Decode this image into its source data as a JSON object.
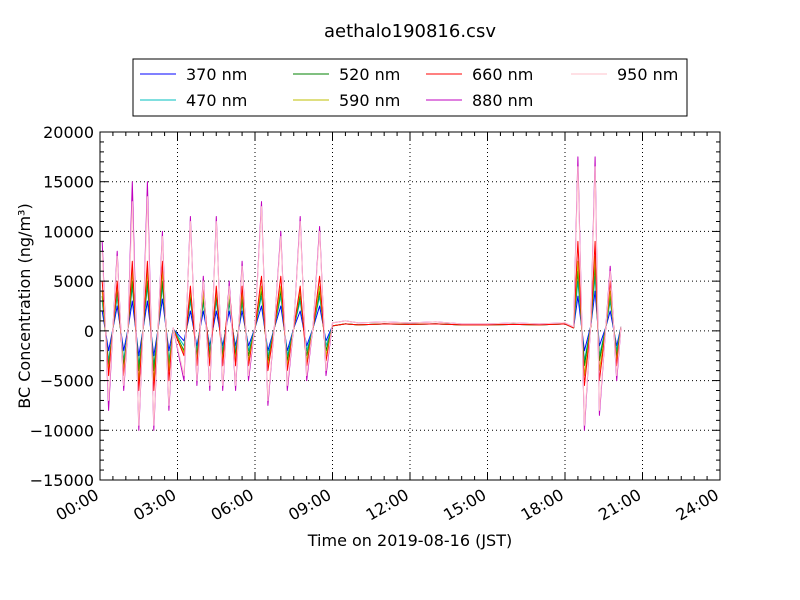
{
  "chart_data": {
    "type": "line",
    "title": "aethalo190816.csv",
    "xlabel": "Time on 2019-08-16 (JST)",
    "ylabel": "BC Concentration (ng/m³)",
    "xlim": [
      "00:00",
      "24:00"
    ],
    "ylim": [
      -15000,
      20000
    ],
    "x_ticks": [
      "00:00",
      "03:00",
      "06:00",
      "09:00",
      "12:00",
      "15:00",
      "18:00",
      "21:00",
      "24:00"
    ],
    "y_ticks": [
      "20000",
      "15000",
      "10000",
      "5000",
      "0",
      "−5000",
      "−10000",
      "−15000"
    ],
    "grid": true,
    "legend_position": "top-center",
    "legend": [
      {
        "label": "370 nm",
        "color": "#0000ff"
      },
      {
        "label": "470 nm",
        "color": "#00bfbf"
      },
      {
        "label": "520 nm",
        "color": "#008000"
      },
      {
        "label": "590 nm",
        "color": "#bfbf00"
      },
      {
        "label": "660 nm",
        "color": "#ff0000"
      },
      {
        "label": "880 nm",
        "color": "#bf00bf"
      },
      {
        "label": "950 nm",
        "color": "#ffc0cb"
      }
    ],
    "series": [
      {
        "name": "370 nm",
        "color": "#0000ff",
        "x": [
          "00:05",
          "00:20",
          "00:30",
          "00:40",
          "00:55",
          "01:05",
          "01:15",
          "01:30",
          "01:40",
          "01:50",
          "02:05",
          "02:15",
          "02:25",
          "02:40",
          "02:50",
          "03:15",
          "03:30",
          "03:45",
          "04:00",
          "04:15",
          "04:30",
          "04:45",
          "05:00",
          "05:15",
          "05:30",
          "05:45",
          "06:00",
          "06:15",
          "06:30",
          "06:45",
          "07:00",
          "07:15",
          "07:30",
          "07:45",
          "08:00",
          "08:15",
          "08:30",
          "08:45",
          "09:00",
          "09:30",
          "10:00",
          "11:00",
          "12:00",
          "13:00",
          "14:00",
          "15:00",
          "16:00",
          "17:00",
          "18:00",
          "18:20",
          "18:30",
          "18:45",
          "19:00",
          "19:10",
          "19:20",
          "19:35",
          "19:45",
          "20:00",
          "20:10"
        ],
        "y": [
          2000,
          -2000,
          200,
          2500,
          -2000,
          200,
          3000,
          -2500,
          200,
          3000,
          -2500,
          200,
          3200,
          -2000,
          200,
          -1000,
          2000,
          -1500,
          2000,
          -1500,
          2000,
          -1500,
          2000,
          -1500,
          2000,
          -1500,
          300,
          2500,
          -2000,
          300,
          2500,
          -2000,
          300,
          2000,
          -1500,
          300,
          2500,
          -1000,
          500,
          700,
          600,
          700,
          650,
          700,
          600,
          600,
          650,
          600,
          700,
          300,
          3500,
          -2000,
          500,
          4000,
          -1500,
          400,
          2000,
          -1500,
          400
        ]
      },
      {
        "name": "470 nm",
        "color": "#00bfbf",
        "x": [
          "00:05",
          "00:20",
          "00:30",
          "00:40",
          "00:55",
          "01:05",
          "01:15",
          "01:30",
          "01:40",
          "01:50",
          "02:05",
          "02:15",
          "02:25",
          "02:40",
          "02:50",
          "03:15",
          "03:30",
          "03:45",
          "04:00",
          "04:15",
          "04:30",
          "04:45",
          "05:00",
          "05:15",
          "05:30",
          "05:45",
          "06:00",
          "06:15",
          "06:30",
          "06:45",
          "07:00",
          "07:15",
          "07:30",
          "07:45",
          "08:00",
          "08:15",
          "08:30",
          "08:45",
          "09:00",
          "09:30",
          "10:00",
          "11:00",
          "12:00",
          "13:00",
          "14:00",
          "15:00",
          "16:00",
          "17:00",
          "18:00",
          "18:20",
          "18:30",
          "18:45",
          "19:00",
          "19:10",
          "19:20",
          "19:35",
          "19:45",
          "20:00",
          "20:10"
        ],
        "y": [
          3000,
          -3000,
          200,
          3500,
          -3000,
          200,
          4500,
          -3500,
          200,
          4500,
          -3500,
          200,
          4500,
          -3000,
          200,
          -1500,
          3000,
          -2000,
          2800,
          -2000,
          3000,
          -2000,
          2800,
          -2000,
          2800,
          -2000,
          300,
          3500,
          -2500,
          300,
          3500,
          -2500,
          300,
          3000,
          -2000,
          300,
          3500,
          -1500,
          500,
          700,
          600,
          700,
          650,
          700,
          600,
          600,
          650,
          600,
          700,
          300,
          5000,
          -3000,
          500,
          5500,
          -2500,
          400,
          3000,
          -2000,
          400
        ]
      },
      {
        "name": "520 nm",
        "color": "#008000",
        "x": [
          "00:05",
          "00:20",
          "00:30",
          "00:40",
          "00:55",
          "01:05",
          "01:15",
          "01:30",
          "01:40",
          "01:50",
          "02:05",
          "02:15",
          "02:25",
          "02:40",
          "02:50",
          "03:15",
          "03:30",
          "03:45",
          "04:00",
          "04:15",
          "04:30",
          "04:45",
          "05:00",
          "05:15",
          "05:30",
          "05:45",
          "06:00",
          "06:15",
          "06:30",
          "06:45",
          "07:00",
          "07:15",
          "07:30",
          "07:45",
          "08:00",
          "08:15",
          "08:30",
          "08:45",
          "09:00",
          "09:30",
          "10:00",
          "11:00",
          "12:00",
          "13:00",
          "14:00",
          "15:00",
          "16:00",
          "17:00",
          "18:00",
          "18:20",
          "18:30",
          "18:45",
          "19:00",
          "19:10",
          "19:20",
          "19:35",
          "19:45",
          "20:00",
          "20:10"
        ],
        "y": [
          3500,
          -3500,
          200,
          4000,
          -3500,
          200,
          5000,
          -4000,
          200,
          5000,
          -4000,
          200,
          5000,
          -3500,
          200,
          -2000,
          3500,
          -2500,
          3200,
          -2500,
          3500,
          -2500,
          3200,
          -2500,
          3200,
          -2500,
          300,
          4000,
          -3000,
          300,
          4000,
          -3000,
          300,
          3500,
          -2500,
          300,
          4000,
          -2000,
          500,
          700,
          600,
          700,
          650,
          700,
          600,
          600,
          650,
          600,
          700,
          300,
          6000,
          -3500,
          500,
          6500,
          -3000,
          400,
          3500,
          -2500,
          400
        ]
      },
      {
        "name": "590 nm",
        "color": "#bfbf00",
        "x": [
          "00:05",
          "00:20",
          "00:30",
          "00:40",
          "00:55",
          "01:05",
          "01:15",
          "01:30",
          "01:40",
          "01:50",
          "02:05",
          "02:15",
          "02:25",
          "02:40",
          "02:50",
          "03:15",
          "03:30",
          "03:45",
          "04:00",
          "04:15",
          "04:30",
          "04:45",
          "05:00",
          "05:15",
          "05:30",
          "05:45",
          "06:00",
          "06:15",
          "06:30",
          "06:45",
          "07:00",
          "07:15",
          "07:30",
          "07:45",
          "08:00",
          "08:15",
          "08:30",
          "08:45",
          "09:00",
          "09:30",
          "10:00",
          "11:00",
          "12:00",
          "13:00",
          "14:00",
          "15:00",
          "16:00",
          "17:00",
          "18:00",
          "18:20",
          "18:30",
          "18:45",
          "19:00",
          "19:10",
          "19:20",
          "19:35",
          "19:45",
          "20:00",
          "20:10"
        ],
        "y": [
          4000,
          -4000,
          200,
          4500,
          -4000,
          200,
          6000,
          -5000,
          200,
          6000,
          -5000,
          200,
          6000,
          -4000,
          200,
          -2200,
          4000,
          -3000,
          3800,
          -3000,
          4000,
          -3000,
          3800,
          -3000,
          3800,
          -3000,
          300,
          4500,
          -3500,
          300,
          4500,
          -3500,
          300,
          4000,
          -3000,
          300,
          4500,
          -2500,
          500,
          700,
          600,
          700,
          650,
          700,
          600,
          600,
          650,
          600,
          700,
          300,
          7000,
          -4500,
          500,
          7500,
          -4000,
          400,
          4000,
          -3000,
          400
        ]
      },
      {
        "name": "660 nm",
        "color": "#ff0000",
        "x": [
          "00:05",
          "00:20",
          "00:30",
          "00:40",
          "00:55",
          "01:05",
          "01:15",
          "01:30",
          "01:40",
          "01:50",
          "02:05",
          "02:15",
          "02:25",
          "02:40",
          "02:50",
          "03:15",
          "03:30",
          "03:45",
          "04:00",
          "04:15",
          "04:30",
          "04:45",
          "05:00",
          "05:15",
          "05:30",
          "05:45",
          "06:00",
          "06:15",
          "06:30",
          "06:45",
          "07:00",
          "07:15",
          "07:30",
          "07:45",
          "08:00",
          "08:15",
          "08:30",
          "08:45",
          "09:00",
          "09:30",
          "10:00",
          "11:00",
          "12:00",
          "13:00",
          "14:00",
          "15:00",
          "16:00",
          "17:00",
          "18:00",
          "18:20",
          "18:30",
          "18:45",
          "19:00",
          "19:10",
          "19:20",
          "19:35",
          "19:45",
          "20:00",
          "20:10"
        ],
        "y": [
          5000,
          -4500,
          200,
          5000,
          -4500,
          200,
          7000,
          -6000,
          200,
          7000,
          -6000,
          200,
          7000,
          -5000,
          200,
          -2500,
          4500,
          -3500,
          4500,
          -3500,
          4500,
          -3500,
          4500,
          -3500,
          4500,
          -3500,
          300,
          5500,
          -4000,
          300,
          5500,
          -4000,
          300,
          4500,
          -3500,
          300,
          5500,
          -3000,
          500,
          700,
          600,
          700,
          650,
          700,
          600,
          600,
          650,
          600,
          700,
          300,
          9000,
          -5500,
          500,
          9000,
          -5000,
          400,
          5000,
          -3500,
          400
        ]
      },
      {
        "name": "880 nm",
        "color": "#bf00bf",
        "x": [
          "00:05",
          "00:20",
          "00:30",
          "00:40",
          "00:55",
          "01:05",
          "01:15",
          "01:30",
          "01:40",
          "01:50",
          "02:05",
          "02:15",
          "02:25",
          "02:40",
          "02:50",
          "03:15",
          "03:30",
          "03:45",
          "04:00",
          "04:15",
          "04:30",
          "04:45",
          "05:00",
          "05:15",
          "05:30",
          "05:45",
          "06:00",
          "06:15",
          "06:30",
          "06:45",
          "07:00",
          "07:15",
          "07:30",
          "07:45",
          "08:00",
          "08:15",
          "08:30",
          "08:45",
          "09:00",
          "09:30",
          "10:00",
          "11:00",
          "12:00",
          "13:00",
          "14:00",
          "15:00",
          "16:00",
          "17:00",
          "18:00",
          "18:20",
          "18:30",
          "18:45",
          "19:00",
          "19:10",
          "19:20",
          "19:35",
          "19:45",
          "20:00",
          "20:10"
        ],
        "y": [
          9000,
          -8000,
          300,
          8000,
          -6000,
          300,
          15000,
          -10000,
          300,
          15000,
          -10000,
          300,
          10000,
          -8000,
          300,
          -5000,
          11500,
          -5500,
          5500,
          -6000,
          11500,
          -6000,
          5000,
          -6000,
          7000,
          -5000,
          500,
          13000,
          -7500,
          500,
          10000,
          -6000,
          500,
          11500,
          -5000,
          500,
          10500,
          -4500,
          800,
          1000,
          800,
          900,
          800,
          900,
          700,
          700,
          800,
          700,
          800,
          400,
          17500,
          -10000,
          800,
          17500,
          -8500,
          500,
          6500,
          -5000,
          400
        ]
      },
      {
        "name": "950 nm",
        "color": "#ffc0cb",
        "x": [
          "00:05",
          "00:20",
          "00:30",
          "00:40",
          "00:55",
          "01:05",
          "01:15",
          "01:30",
          "01:40",
          "01:50",
          "02:05",
          "02:15",
          "02:25",
          "02:40",
          "02:50",
          "03:15",
          "03:30",
          "03:45",
          "04:00",
          "04:15",
          "04:30",
          "04:45",
          "05:00",
          "05:15",
          "05:30",
          "05:45",
          "06:00",
          "06:15",
          "06:30",
          "06:45",
          "07:00",
          "07:15",
          "07:30",
          "07:45",
          "08:00",
          "08:15",
          "08:30",
          "08:45",
          "09:00",
          "09:30",
          "10:00",
          "11:00",
          "12:00",
          "13:00",
          "14:00",
          "15:00",
          "16:00",
          "17:00",
          "18:00",
          "18:20",
          "18:30",
          "18:45",
          "19:00",
          "19:10",
          "19:20",
          "19:35",
          "19:45",
          "20:00",
          "20:10"
        ],
        "y": [
          8000,
          -7000,
          300,
          7500,
          -5500,
          300,
          13000,
          -9500,
          300,
          13500,
          -9500,
          300,
          9500,
          -7500,
          300,
          -4500,
          11000,
          -5000,
          5000,
          -5500,
          11000,
          -5500,
          4500,
          -5500,
          6500,
          -4500,
          500,
          12500,
          -7000,
          500,
          9500,
          -5500,
          500,
          11000,
          -4500,
          500,
          10000,
          -4000,
          800,
          1000,
          800,
          900,
          800,
          900,
          700,
          700,
          800,
          700,
          800,
          400,
          16500,
          -9500,
          800,
          16500,
          -8000,
          500,
          6000,
          -4500,
          400
        ]
      }
    ]
  }
}
